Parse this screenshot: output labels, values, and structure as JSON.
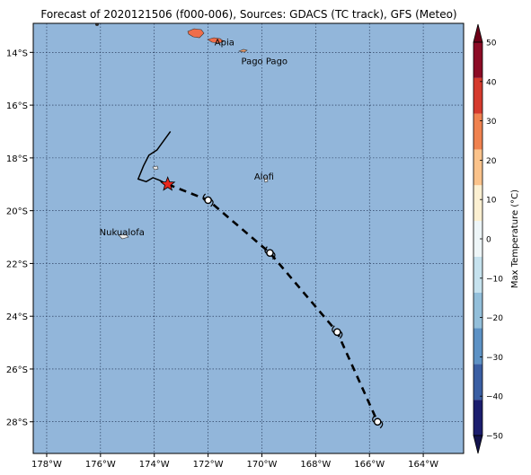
{
  "title": "Forecast of 2020121506 (f000-006), Sources: GDACS (TC track), GFS (Meteo)",
  "map": {
    "lon_range": [
      -178.5,
      -162.5
    ],
    "lat_range": [
      -29.2,
      -12.9
    ],
    "x_ticks": [
      -178,
      -176,
      -174,
      -172,
      -170,
      -168,
      -166,
      -164
    ],
    "y_ticks": [
      -14,
      -16,
      -18,
      -20,
      -22,
      -24,
      -26,
      -28
    ],
    "x_tick_labels": [
      "178°W",
      "176°W",
      "174°W",
      "172°W",
      "170°W",
      "168°W",
      "166°W",
      "164°W"
    ],
    "y_tick_labels": [
      "14°S",
      "16°S",
      "18°S",
      "20°S",
      "22°S",
      "24°S",
      "26°S",
      "28°S"
    ],
    "ocean_color": "#92b6da",
    "grid": "dotted"
  },
  "places": [
    {
      "name": "Apia",
      "lon": -171.76,
      "lat": -13.83
    },
    {
      "name": "Pago Pago",
      "lon": -170.7,
      "lat": -14.28
    },
    {
      "name": "Alofi",
      "lon": -169.92,
      "lat": -19.06
    },
    {
      "name": "Nukualofa",
      "lon": -175.2,
      "lat": -21.14
    }
  ],
  "track": {
    "current_position": {
      "lon": -173.5,
      "lat": -19.0
    },
    "forecast_points": [
      {
        "lon": -172.0,
        "lat": -19.6
      },
      {
        "lon": -169.7,
        "lat": -21.6
      },
      {
        "lon": -167.2,
        "lat": -24.6
      },
      {
        "lon": -165.7,
        "lat": -28.0
      }
    ],
    "past_track": [
      {
        "lon": -173.4,
        "lat": -17.0
      },
      {
        "lon": -173.9,
        "lat": -17.7
      },
      {
        "lon": -174.2,
        "lat": -17.9
      },
      {
        "lon": -174.4,
        "lat": -18.3
      },
      {
        "lon": -174.6,
        "lat": -18.8
      },
      {
        "lon": -174.3,
        "lat": -18.9
      },
      {
        "lon": -174.05,
        "lat": -18.75
      },
      {
        "lon": -173.8,
        "lat": -18.85
      },
      {
        "lon": -173.5,
        "lat": -19.0
      }
    ],
    "star_color": "#e8281e"
  },
  "colorbar": {
    "label": "Max Temperature (°C)",
    "ticks": [
      -50,
      -40,
      -30,
      -20,
      -10,
      0,
      10,
      20,
      30,
      40,
      50
    ],
    "tick_labels": [
      "−50",
      "−40",
      "−30",
      "−20",
      "−10",
      "0",
      "10",
      "20",
      "30",
      "40",
      "50"
    ],
    "colors": [
      "#1b1d6e",
      "#3a5ea3",
      "#5d92c5",
      "#93bfda",
      "#c6e2ee",
      "#eef6f8",
      "#fcf0d2",
      "#fbc38b",
      "#f0824f",
      "#d53a2d",
      "#8c0b25"
    ],
    "extend_low_color": "#13134d",
    "extend_high_color": "#6e0018"
  }
}
